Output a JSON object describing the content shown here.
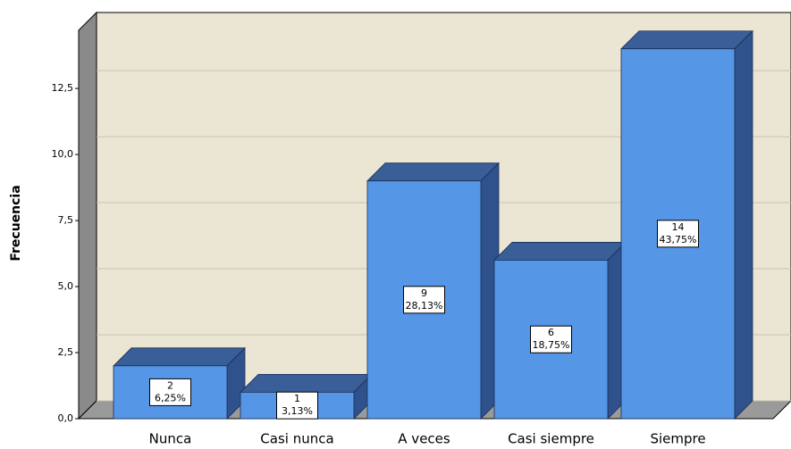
{
  "chart_data": {
    "type": "bar3d",
    "y_label": "Frecuencia",
    "categories": [
      "Nunca",
      "Casi nunca",
      "A veces",
      "Casi siempre",
      "Siempre"
    ],
    "values": [
      2,
      1,
      9,
      6,
      14
    ],
    "percent_values": [
      6.25,
      3.13,
      28.13,
      18.75,
      43.75
    ],
    "percent_value_labels": [
      "6,25%",
      "3,13%",
      "28,13%",
      "18,75%",
      "43,75%"
    ],
    "color": "#5596e6",
    "ylim": [
      0,
      14.7
    ],
    "yticks": [
      {
        "value": 0,
        "label": "0,0"
      },
      {
        "value": 2.5,
        "label": "2,5"
      },
      {
        "value": 5,
        "label": "5,0"
      },
      {
        "value": 7.5,
        "label": "7,5"
      },
      {
        "value": 10,
        "label": "10,0"
      },
      {
        "value": 12.5,
        "label": "12,5"
      }
    ],
    "grid": true
  }
}
